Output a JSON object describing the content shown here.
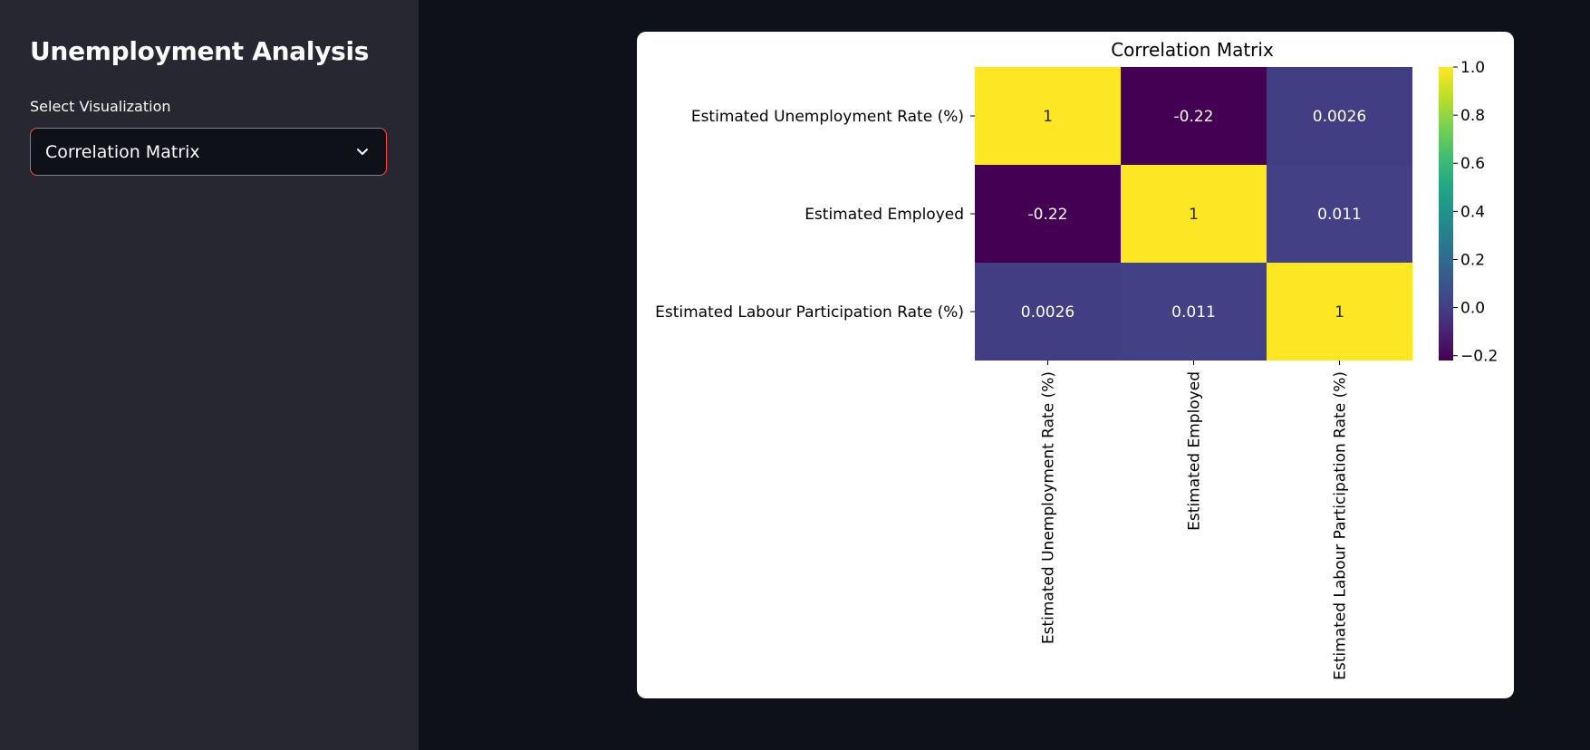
{
  "sidebar": {
    "title": "Unemployment Analysis",
    "select_label": "Select Visualization",
    "select_value": "Correlation Matrix",
    "chevron_icon": "chevron-down-icon"
  },
  "colors": {
    "accent_border": "#ff4b4b",
    "sidebar_bg": "#262730",
    "main_bg": "#0e1117"
  },
  "chart_data": {
    "type": "heatmap",
    "title": "Correlation Matrix",
    "colormap": "viridis",
    "labels": [
      "Estimated Unemployment Rate (%)",
      "Estimated Employed",
      "Estimated Labour Participation Rate (%)"
    ],
    "values": [
      [
        1,
        -0.22,
        0.0026
      ],
      [
        -0.22,
        1,
        0.011
      ],
      [
        0.0026,
        0.011,
        1
      ]
    ],
    "annotations": [
      [
        "1",
        "-0.22",
        "0.0026"
      ],
      [
        "-0.22",
        "1",
        "0.011"
      ],
      [
        "0.0026",
        "0.011",
        "1"
      ]
    ],
    "colorbar": {
      "vmin": -0.22,
      "vmax": 1.0,
      "ticks": [
        1.0,
        0.8,
        0.6,
        0.4,
        0.2,
        0.0,
        -0.2
      ],
      "tick_labels": [
        "1.0",
        "0.8",
        "0.6",
        "0.4",
        "0.2",
        "0.0",
        "−0.2"
      ]
    }
  }
}
